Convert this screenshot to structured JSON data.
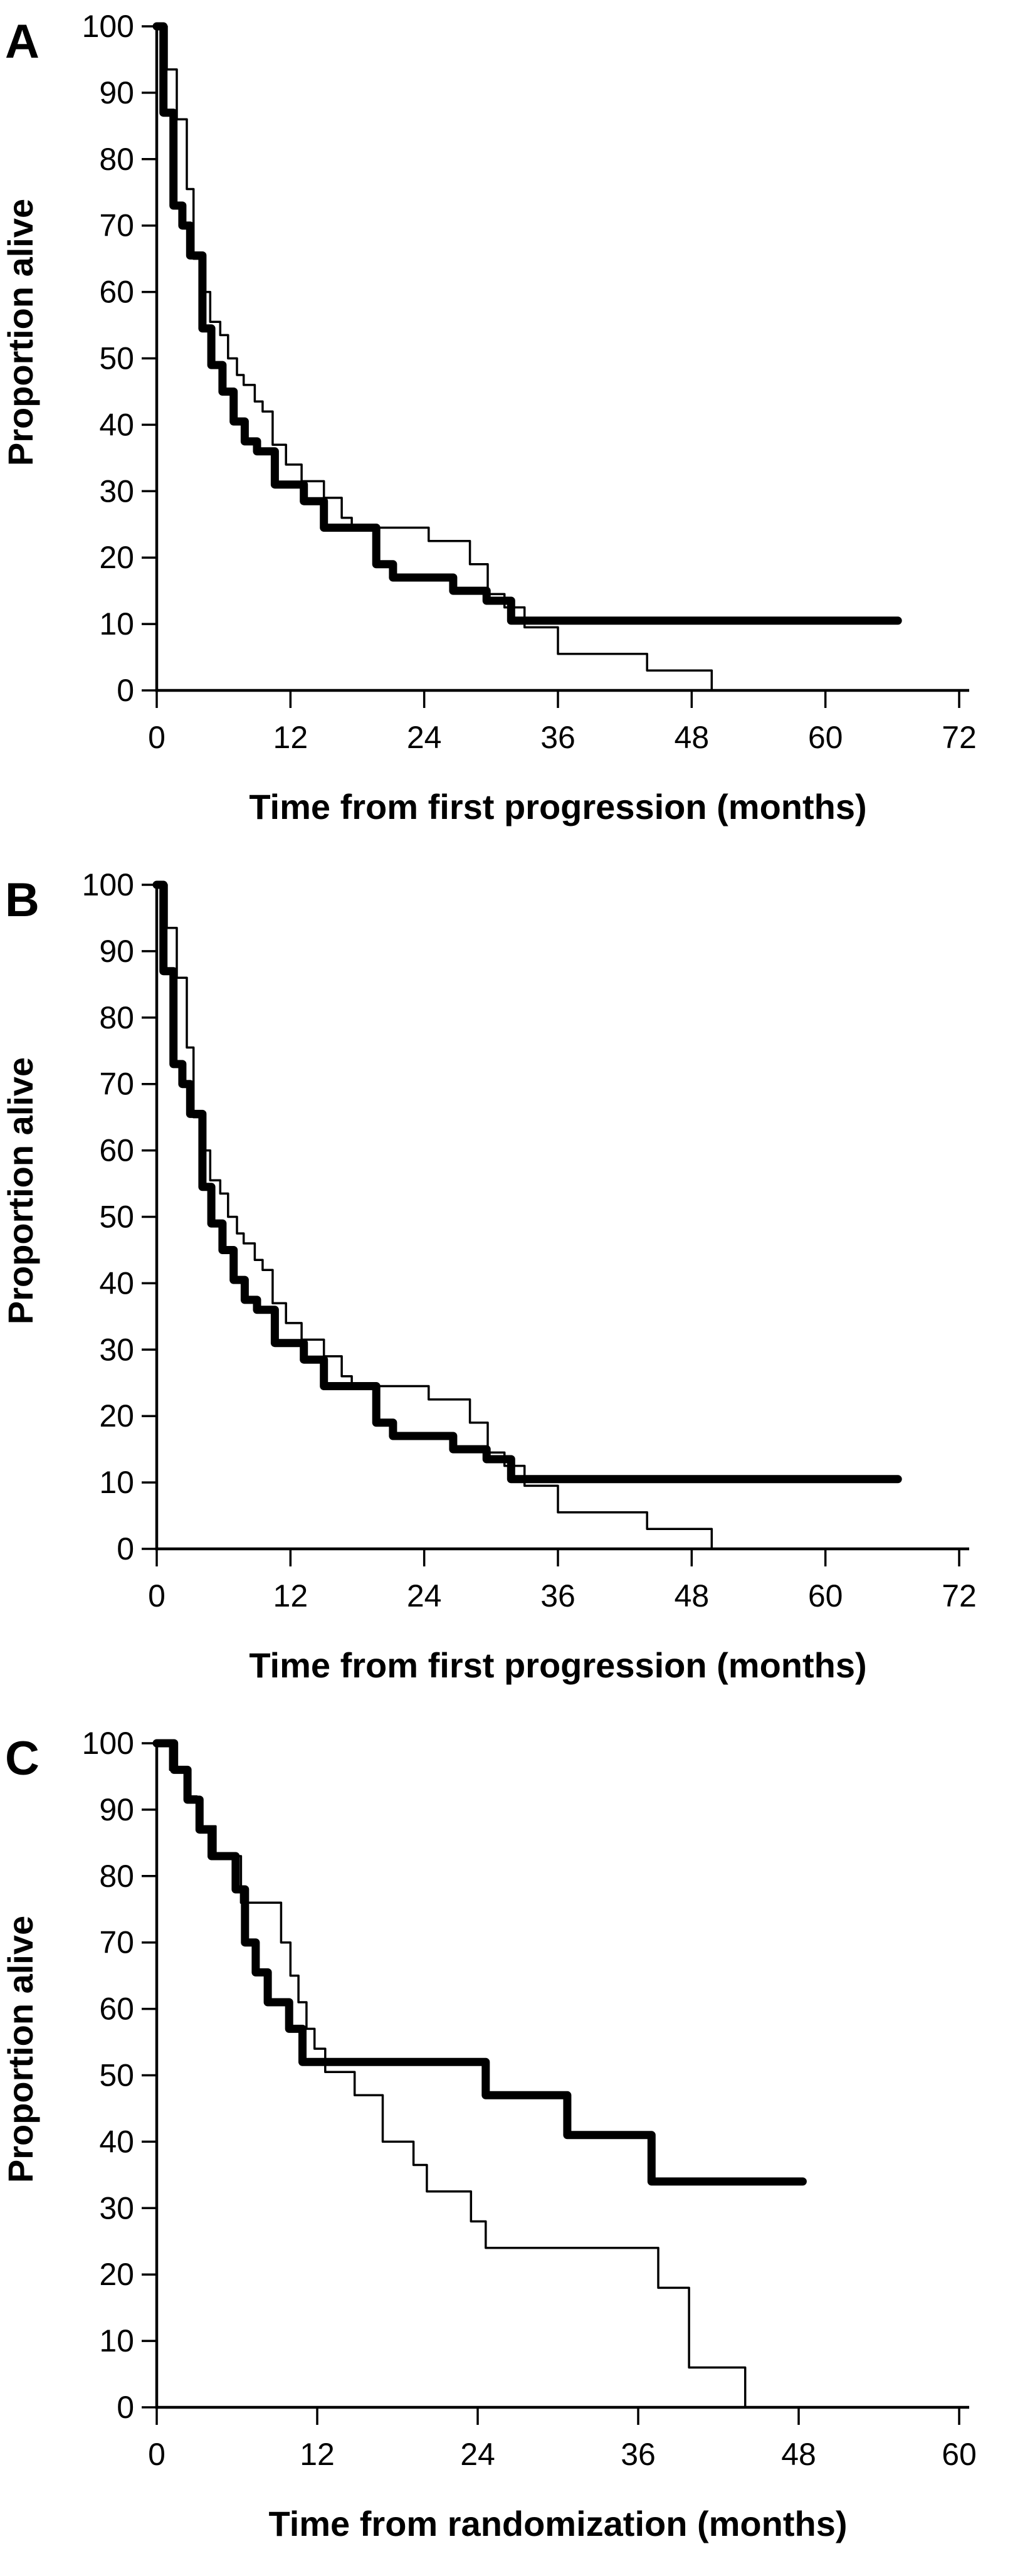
{
  "figure": {
    "background_color": "#ffffff",
    "line_color": "#000000",
    "n_panels": 3
  },
  "chart_data": [
    {
      "panel_label": "A",
      "type": "line",
      "subtype": "kaplan-meier-step",
      "title": "",
      "xlabel": "Time from first progression (months)",
      "ylabel": "Proportion alive",
      "xlim": [
        0,
        72
      ],
      "xticks": [
        0,
        12,
        24,
        36,
        48,
        60,
        72
      ],
      "ylim": [
        0,
        100
      ],
      "yticks": [
        0,
        10,
        20,
        30,
        40,
        50,
        60,
        70,
        80,
        90,
        100
      ],
      "grid": false,
      "legend": "none",
      "series": [
        {
          "name": "thick-curve",
          "style": "thick",
          "start": [
            0,
            100
          ],
          "steps": [
            [
              0.6,
              87
            ],
            [
              1.5,
              73
            ],
            [
              2.3,
              70
            ],
            [
              3.0,
              65.5
            ],
            [
              4.1,
              54.5
            ],
            [
              4.9,
              49
            ],
            [
              5.9,
              45
            ],
            [
              6.9,
              40.5
            ],
            [
              7.9,
              37.5
            ],
            [
              9.0,
              36
            ],
            [
              10.6,
              31
            ],
            [
              13.2,
              28.5
            ],
            [
              15.0,
              24.5
            ],
            [
              19.7,
              19
            ],
            [
              21.2,
              17
            ],
            [
              26.6,
              15
            ],
            [
              29.6,
              13.5
            ],
            [
              31.8,
              10.5
            ]
          ],
          "end_time": 66.5
        },
        {
          "name": "thin-curve",
          "style": "thin",
          "start": [
            0,
            100
          ],
          "steps": [
            [
              0.9,
              93.5
            ],
            [
              1.8,
              86
            ],
            [
              2.7,
              75.5
            ],
            [
              3.3,
              65
            ],
            [
              4.2,
              60
            ],
            [
              4.8,
              55.5
            ],
            [
              5.7,
              53.5
            ],
            [
              6.4,
              50
            ],
            [
              7.2,
              47.5
            ],
            [
              7.8,
              46
            ],
            [
              8.8,
              43.5
            ],
            [
              9.5,
              42
            ],
            [
              10.4,
              37
            ],
            [
              11.6,
              34
            ],
            [
              13.0,
              31.5
            ],
            [
              15.0,
              29
            ],
            [
              16.6,
              26
            ],
            [
              17.5,
              24.5
            ],
            [
              24.4,
              22.5
            ],
            [
              28.1,
              19
            ],
            [
              29.7,
              14.5
            ],
            [
              31.2,
              12.5
            ],
            [
              33.0,
              9.5
            ],
            [
              36.0,
              5.5
            ],
            [
              44.0,
              3.0
            ],
            [
              49.8,
              0
            ]
          ],
          "end_time": 49.8
        }
      ]
    },
    {
      "panel_label": "B",
      "type": "line",
      "subtype": "kaplan-meier-step",
      "title": "",
      "xlabel": "Time from first progression (months)",
      "ylabel": "Proportion alive",
      "xlim": [
        0,
        72
      ],
      "xticks": [
        0,
        12,
        24,
        36,
        48,
        60,
        72
      ],
      "ylim": [
        0,
        100
      ],
      "yticks": [
        0,
        10,
        20,
        30,
        40,
        50,
        60,
        70,
        80,
        90,
        100
      ],
      "grid": false,
      "legend": "none",
      "series": [
        {
          "name": "thick-curve",
          "style": "thick",
          "start": [
            0,
            100
          ],
          "steps": [
            [
              0.6,
              87
            ],
            [
              1.5,
              73
            ],
            [
              2.3,
              70
            ],
            [
              3.0,
              65.5
            ],
            [
              4.1,
              54.5
            ],
            [
              4.9,
              49
            ],
            [
              5.9,
              45
            ],
            [
              6.9,
              40.5
            ],
            [
              7.9,
              37.5
            ],
            [
              9.0,
              36
            ],
            [
              10.6,
              31
            ],
            [
              13.2,
              28.5
            ],
            [
              15.0,
              24.5
            ],
            [
              19.7,
              19
            ],
            [
              21.2,
              17
            ],
            [
              26.6,
              15
            ],
            [
              29.6,
              13.5
            ],
            [
              31.8,
              10.5
            ]
          ],
          "end_time": 66.5
        },
        {
          "name": "thin-curve",
          "style": "thin",
          "start": [
            0,
            100
          ],
          "steps": [
            [
              0.9,
              93.5
            ],
            [
              1.8,
              86
            ],
            [
              2.7,
              75.5
            ],
            [
              3.3,
              65
            ],
            [
              4.2,
              60
            ],
            [
              4.8,
              55.5
            ],
            [
              5.7,
              53.5
            ],
            [
              6.4,
              50
            ],
            [
              7.2,
              47.5
            ],
            [
              7.8,
              46
            ],
            [
              8.8,
              43.5
            ],
            [
              9.5,
              42
            ],
            [
              10.4,
              37
            ],
            [
              11.6,
              34
            ],
            [
              13.0,
              31.5
            ],
            [
              15.0,
              29
            ],
            [
              16.6,
              26
            ],
            [
              17.5,
              24.5
            ],
            [
              24.4,
              22.5
            ],
            [
              28.1,
              19
            ],
            [
              29.7,
              14.5
            ],
            [
              31.2,
              12.5
            ],
            [
              33.0,
              9.5
            ],
            [
              36.0,
              5.5
            ],
            [
              44.0,
              3.0
            ],
            [
              49.8,
              0
            ]
          ],
          "end_time": 49.8
        }
      ]
    },
    {
      "panel_label": "C",
      "type": "line",
      "subtype": "kaplan-meier-step",
      "title": "",
      "xlabel": "Time from randomization (months)",
      "ylabel": "Proportion alive",
      "xlim": [
        0,
        60
      ],
      "xticks": [
        0,
        12,
        24,
        36,
        48,
        60
      ],
      "ylim": [
        0,
        100
      ],
      "yticks": [
        0,
        10,
        20,
        30,
        40,
        50,
        60,
        70,
        80,
        90,
        100
      ],
      "grid": false,
      "legend": "none",
      "series": [
        {
          "name": "thick-curve",
          "style": "thick",
          "start": [
            0,
            100
          ],
          "steps": [
            [
              1.3,
              96
            ],
            [
              2.3,
              91.5
            ],
            [
              3.2,
              87
            ],
            [
              4.1,
              83
            ],
            [
              5.9,
              78
            ],
            [
              6.6,
              70
            ],
            [
              7.4,
              65.5
            ],
            [
              8.3,
              61
            ],
            [
              9.9,
              57
            ],
            [
              10.9,
              52
            ],
            [
              24.6,
              47
            ],
            [
              30.7,
              41
            ],
            [
              37.0,
              34
            ]
          ],
          "end_time": 48.3
        },
        {
          "name": "thin-curve",
          "style": "thin",
          "start": [
            0,
            100
          ],
          "steps": [
            [
              1.0,
              96
            ],
            [
              2.1,
              92
            ],
            [
              3.0,
              87.5
            ],
            [
              4.4,
              83
            ],
            [
              6.3,
              76
            ],
            [
              9.3,
              70
            ],
            [
              10.0,
              65
            ],
            [
              10.6,
              61
            ],
            [
              11.2,
              57
            ],
            [
              11.8,
              54
            ],
            [
              12.6,
              50.5
            ],
            [
              14.8,
              47
            ],
            [
              16.9,
              40
            ],
            [
              19.2,
              36.5
            ],
            [
              20.2,
              32.5
            ],
            [
              23.5,
              28
            ],
            [
              24.6,
              24
            ],
            [
              37.5,
              18
            ],
            [
              39.8,
              6
            ],
            [
              44.0,
              0
            ]
          ],
          "end_time": 44.0
        }
      ]
    }
  ]
}
